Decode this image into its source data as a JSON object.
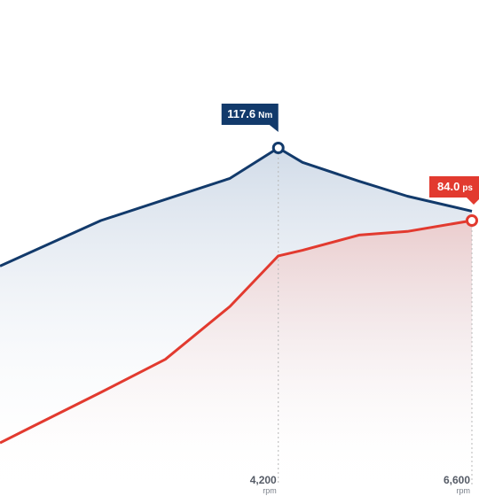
{
  "colors": {
    "torque": "#123a6b",
    "power": "#e23a2f",
    "torque_fill_top": "#c9d5e4",
    "power_fill_top": "#eccaca",
    "guide": "#b8b8b8",
    "tick_text": "#555b66"
  },
  "chart_data": {
    "type": "line",
    "title": "",
    "xlabel": "",
    "ylabel": "",
    "x_unit": "rpm",
    "xlim": [
      750,
      6600
    ],
    "x": [
      1100,
      2000,
      2800,
      3600,
      4200,
      4500,
      5200,
      5800,
      6600
    ],
    "series": [
      {
        "key": "torque",
        "values": [
          98.6,
          104.5,
          108.3,
          112.1,
          117.6,
          115.0,
          111.6,
          108.9,
          106.2
        ],
        "fill": "area"
      },
      {
        "key": "power",
        "values": [
          21.0,
          32.0,
          42.0,
          58.0,
          73.3,
          75.0,
          79.6,
          80.7,
          84.0
        ],
        "fill": "area"
      }
    ],
    "ticks": [
      {
        "value": "4,200",
        "unit": "rpm",
        "x": 4200
      },
      {
        "value": "6,600",
        "unit": "rpm",
        "x": 6600
      }
    ],
    "callouts": [
      {
        "series": "torque",
        "x": 4200,
        "value": "117.6",
        "unit": "Nm"
      },
      {
        "series": "power",
        "x": 6600,
        "value": "84.0",
        "unit": "ps"
      }
    ]
  }
}
